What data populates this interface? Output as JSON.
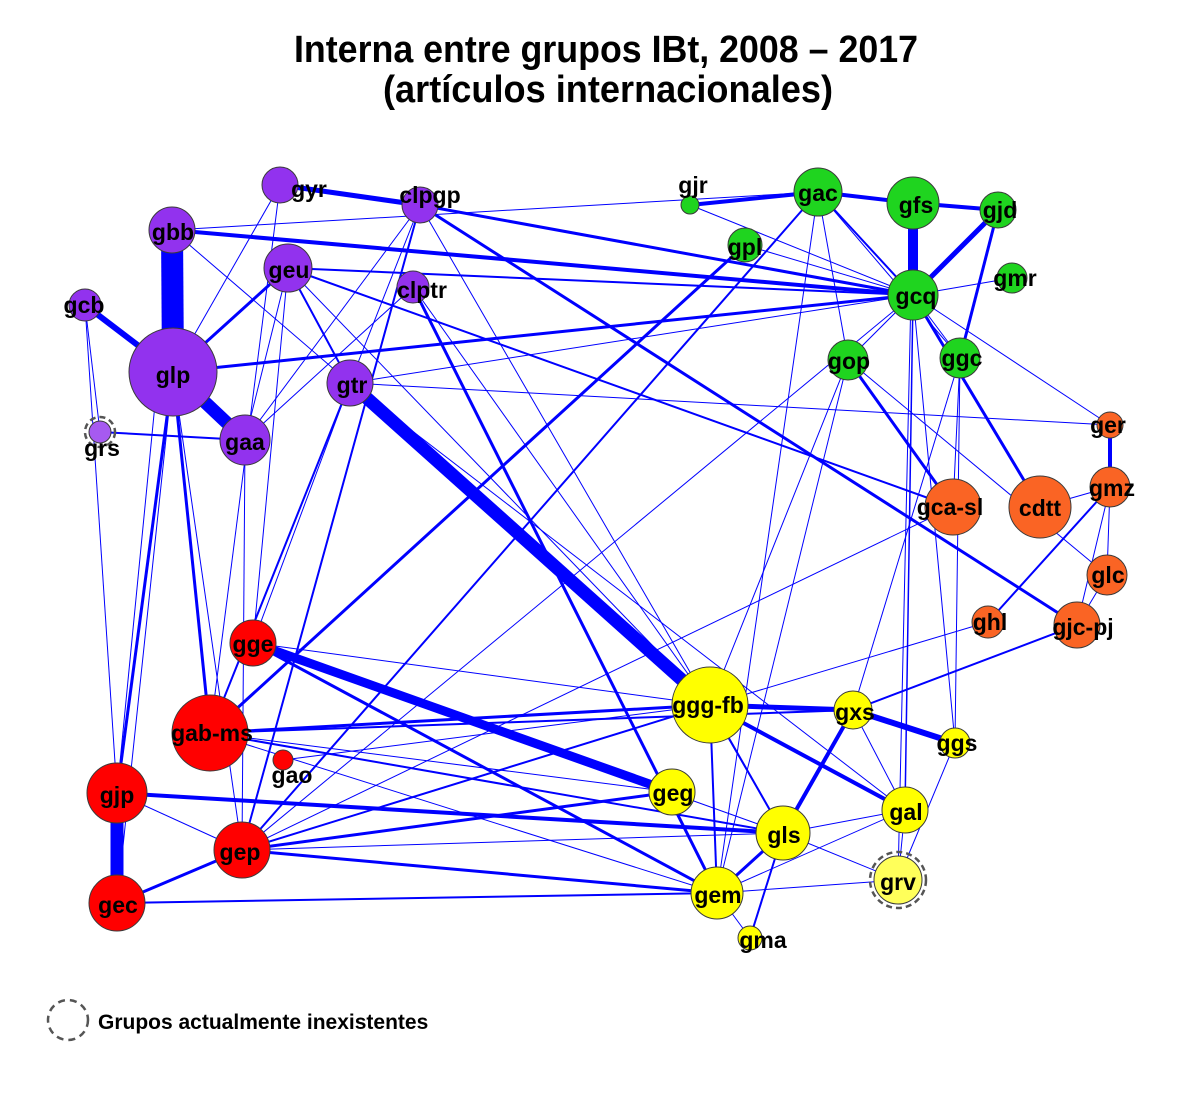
{
  "title": {
    "line1": "Interna entre grupos IBt, 2008 – 2017",
    "line2": "(artículos internacionales)"
  },
  "legend": {
    "text": "Grupos actualmente inexistentes"
  },
  "colors": {
    "edge": "#0000ff",
    "node_stroke": "#3a3a3a",
    "extinct_ring": "#555555"
  },
  "nodes": [
    {
      "label": "gyr",
      "color": "#9232ee"
    },
    {
      "label": "clpgp",
      "color": "#9232ee"
    },
    {
      "label": "gbb",
      "color": "#9232ee"
    },
    {
      "label": "geu",
      "color": "#9232ee"
    },
    {
      "label": "clptr",
      "color": "#9232ee"
    },
    {
      "label": "gcb",
      "color": "#9232ee"
    },
    {
      "label": "glp",
      "color": "#9232ee"
    },
    {
      "label": "gtr",
      "color": "#9232ee"
    },
    {
      "label": "gaa",
      "color": "#9232ee"
    },
    {
      "label": "grs",
      "color": "#a65af0",
      "extinct": true
    },
    {
      "label": "gjr",
      "color": "#1fd41f"
    },
    {
      "label": "gac",
      "color": "#1fd41f"
    },
    {
      "label": "gfs",
      "color": "#1fd41f"
    },
    {
      "label": "gjd",
      "color": "#1fd41f"
    },
    {
      "label": "gpl",
      "color": "#1fd41f"
    },
    {
      "label": "gcq",
      "color": "#1fd41f"
    },
    {
      "label": "gmr",
      "color": "#1fd41f"
    },
    {
      "label": "gop",
      "color": "#1fd41f"
    },
    {
      "label": "ggc",
      "color": "#1fd41f"
    },
    {
      "label": "ger",
      "color": "#fa6424"
    },
    {
      "label": "gmz",
      "color": "#fa6424"
    },
    {
      "label": "gca-sl",
      "color": "#fa6424"
    },
    {
      "label": "cdtt",
      "color": "#fa6424"
    },
    {
      "label": "glc",
      "color": "#fa6424"
    },
    {
      "label": "ghl",
      "color": "#fa6424"
    },
    {
      "label": "gjc-pj",
      "color": "#fa6424"
    },
    {
      "label": "gge",
      "color": "#ff0000"
    },
    {
      "label": "gab-ms",
      "color": "#ff0000"
    },
    {
      "label": "gao",
      "color": "#ff0000"
    },
    {
      "label": "gjp",
      "color": "#ff0000"
    },
    {
      "label": "gep",
      "color": "#ff0000"
    },
    {
      "label": "gec",
      "color": "#ff0000"
    },
    {
      "label": "ggg-fb",
      "color": "#ffff00"
    },
    {
      "label": "gxs",
      "color": "#ffff00"
    },
    {
      "label": "ggs",
      "color": "#ffff00"
    },
    {
      "label": "geg",
      "color": "#ffff00"
    },
    {
      "label": "gal",
      "color": "#ffff00"
    },
    {
      "label": "gls",
      "color": "#ffff00"
    },
    {
      "label": "grv",
      "color": "#ffff5a",
      "extinct": true
    },
    {
      "label": "gem",
      "color": "#ffff00"
    },
    {
      "label": "gma",
      "color": "#ffff00"
    }
  ],
  "edges": [
    [
      "gbb",
      "glp"
    ],
    [
      "glp",
      "gaa"
    ],
    [
      "gcb",
      "glp"
    ],
    [
      "gtr",
      "ggg-fb"
    ],
    [
      "gge",
      "geg"
    ],
    [
      "gjp",
      "gec"
    ],
    [
      "gfs",
      "gcq"
    ],
    [
      "gjd",
      "gcq"
    ],
    [
      "gyr",
      "clpgp"
    ],
    [
      "gjr",
      "gac"
    ],
    [
      "gac",
      "gfs"
    ],
    [
      "gfs",
      "gjd"
    ],
    [
      "gbb",
      "gcq"
    ],
    [
      "glp",
      "gcq"
    ],
    [
      "ggg-fb",
      "gxs"
    ],
    [
      "gxs",
      "ggs"
    ],
    [
      "ggg-fb",
      "gal"
    ],
    [
      "gxs",
      "gls"
    ],
    [
      "gls",
      "gem"
    ],
    [
      "gep",
      "gem"
    ],
    [
      "gjp",
      "gls"
    ],
    [
      "gec",
      "gem"
    ],
    [
      "gec",
      "gep"
    ],
    [
      "glp",
      "gjp"
    ],
    [
      "glp",
      "gab-ms"
    ],
    [
      "gcq",
      "cdtt"
    ],
    [
      "gop",
      "gca-sl"
    ],
    [
      "clpgp",
      "gjc-pj"
    ],
    [
      "gpl",
      "gab-ms"
    ],
    [
      "gge",
      "gem"
    ],
    [
      "gep",
      "geg"
    ],
    [
      "gep",
      "ggg-fb"
    ],
    [
      "ger",
      "gmz"
    ],
    [
      "geu",
      "gtr"
    ],
    [
      "geu",
      "glp"
    ],
    [
      "geu",
      "gcq"
    ],
    [
      "clpgp",
      "gcq"
    ],
    [
      "grs",
      "gaa"
    ],
    [
      "gab-ms",
      "ggg-fb"
    ],
    [
      "gao",
      "ggg-fb"
    ],
    [
      "gls",
      "gma"
    ],
    [
      "gem",
      "gma"
    ],
    [
      "ggg-fb",
      "gem"
    ],
    [
      "ggg-fb",
      "gls"
    ],
    [
      "gal",
      "grv"
    ],
    [
      "gxs",
      "gal"
    ],
    [
      "ggs",
      "grv"
    ],
    [
      "gtr",
      "gab-ms"
    ],
    [
      "clpgp",
      "gep"
    ],
    [
      "clptr",
      "gem"
    ],
    [
      "gac",
      "gep"
    ],
    [
      "gcq",
      "gal"
    ],
    [
      "gjd",
      "ggc"
    ],
    [
      "gmr",
      "gcq"
    ],
    [
      "gac",
      "gcq"
    ],
    [
      "gac",
      "gop"
    ],
    [
      "gcq",
      "ggc"
    ],
    [
      "gcq",
      "gop"
    ],
    [
      "gmz",
      "glc"
    ],
    [
      "gmz",
      "cdtt"
    ],
    [
      "gmz",
      "ghl"
    ],
    [
      "gmz",
      "gjc-pj"
    ],
    [
      "gtr",
      "ger"
    ],
    [
      "glc",
      "gjc-pj"
    ],
    [
      "gxs",
      "gjc-pj"
    ],
    [
      "gca-sl",
      "gep"
    ],
    [
      "gyr",
      "gab-ms"
    ],
    [
      "gyr",
      "glp"
    ],
    [
      "gbb",
      "gtr"
    ],
    [
      "gbb",
      "gjp"
    ],
    [
      "glp",
      "gep"
    ],
    [
      "geu",
      "gca-sl"
    ],
    [
      "geu",
      "ggg-fb"
    ],
    [
      "gtr",
      "gcq"
    ],
    [
      "gtr",
      "gal"
    ],
    [
      "clpgp",
      "gls"
    ],
    [
      "gcq",
      "gep"
    ],
    [
      "gac",
      "gem"
    ],
    [
      "gop",
      "gem"
    ],
    [
      "gop",
      "ggg-fb"
    ],
    [
      "ggc",
      "ggs"
    ],
    [
      "ggc",
      "gxs"
    ],
    [
      "gop",
      "glc"
    ],
    [
      "gcq",
      "ggs"
    ],
    [
      "gcb",
      "grs"
    ],
    [
      "gcb",
      "gjp"
    ],
    [
      "gaa",
      "gep"
    ],
    [
      "geu",
      "gaa"
    ],
    [
      "clptr",
      "gaa"
    ],
    [
      "clpgp",
      "gaa"
    ],
    [
      "gge",
      "ggg-fb"
    ],
    [
      "gjp",
      "gep"
    ],
    [
      "gab-ms",
      "geg"
    ],
    [
      "gab-ms",
      "gls"
    ],
    [
      "gge",
      "gls"
    ],
    [
      "gcq",
      "ger"
    ],
    [
      "geu",
      "gge"
    ],
    [
      "gtr",
      "gge"
    ],
    [
      "gpl",
      "gcq"
    ],
    [
      "gac",
      "ggc"
    ],
    [
      "gjr",
      "gcq"
    ],
    [
      "ggg-fb",
      "ghl"
    ],
    [
      "gem",
      "gal"
    ],
    [
      "gem",
      "grv"
    ],
    [
      "gls",
      "gal"
    ],
    [
      "gls",
      "grv"
    ],
    [
      "gep",
      "gls"
    ],
    [
      "gab-ms",
      "gem"
    ],
    [
      "gab-ms",
      "gxs"
    ],
    [
      "ggc",
      "gca-sl"
    ],
    [
      "gbb",
      "gac"
    ],
    [
      "clpgp",
      "gtr"
    ],
    [
      "clptr",
      "ggg-fb"
    ],
    [
      "glp",
      "gec"
    ],
    [
      "gfs",
      "grv"
    ]
  ]
}
